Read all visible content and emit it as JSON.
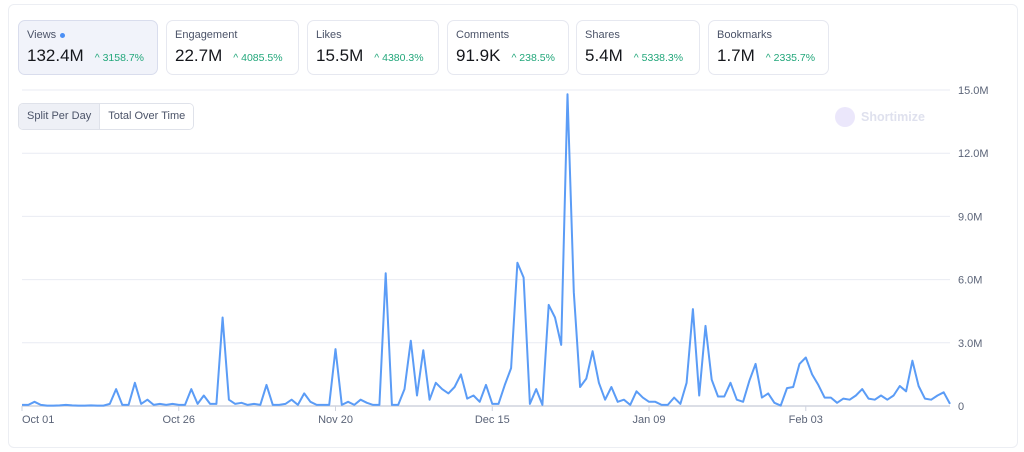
{
  "metrics": [
    {
      "label": "Views",
      "value": "132.4M",
      "change": "3158.7%",
      "active": true
    },
    {
      "label": "Engagement",
      "value": "22.7M",
      "change": "4085.5%"
    },
    {
      "label": "Likes",
      "value": "15.5M",
      "change": "4380.3%"
    },
    {
      "label": "Comments",
      "value": "91.9K",
      "change": "238.5%"
    },
    {
      "label": "Shares",
      "value": "5.4M",
      "change": "5338.3%"
    },
    {
      "label": "Bookmarks",
      "value": "1.7M",
      "change": "2335.7%"
    }
  ],
  "toggle": {
    "split": "Split Per Day",
    "total": "Total Over Time",
    "selected": "Split Per Day"
  },
  "watermark": "Shortimize",
  "colors": {
    "line": "#5b9cf6",
    "positive": "#23a77b",
    "accent_dot": "#4b8ff5"
  },
  "chart_data": {
    "type": "line",
    "series": [
      {
        "metric": "Views",
        "unit": "M",
        "values": [
          0.05,
          0.05,
          0.2,
          0.05,
          0.02,
          0.02,
          0.03,
          0.05,
          0.03,
          0.02,
          0.02,
          0.03,
          0.02,
          0.02,
          0.1,
          0.8,
          0.05,
          0.05,
          1.1,
          0.1,
          0.3,
          0.05,
          0.1,
          0.05,
          0.1,
          0.05,
          0.05,
          0.8,
          0.1,
          0.5,
          0.1,
          0.1,
          4.2,
          0.3,
          0.1,
          0.15,
          0.05,
          0.1,
          0.05,
          1.0,
          0.05,
          0.05,
          0.1,
          0.3,
          0.05,
          0.6,
          0.2,
          0.05,
          0.05,
          0.05,
          2.7,
          0.05,
          0.2,
          0.05,
          0.3,
          0.15,
          0.05,
          0.05,
          6.3,
          0.05,
          0.05,
          0.8,
          3.1,
          0.5,
          2.65,
          0.3,
          1.1,
          0.8,
          0.6,
          0.9,
          1.5,
          0.35,
          0.5,
          0.2,
          1.0,
          0.1,
          0.1,
          1.0,
          1.8,
          6.8,
          6.1,
          0.1,
          0.8,
          0.05,
          4.8,
          4.2,
          2.9,
          14.8,
          5.4,
          0.9,
          1.3,
          2.6,
          1.1,
          0.3,
          0.9,
          0.2,
          0.3,
          0.05,
          0.7,
          0.4,
          0.2,
          0.2,
          0.05,
          0.05,
          0.4,
          0.1,
          1.1,
          4.6,
          0.5,
          3.8,
          1.25,
          0.45,
          0.45,
          1.1,
          0.3,
          0.2,
          1.2,
          2.0,
          0.4,
          0.6,
          0.15,
          0.02,
          0.85,
          0.9,
          2.0,
          2.3,
          1.5,
          1.0,
          0.4,
          0.4,
          0.15,
          0.35,
          0.3,
          0.5,
          0.8,
          0.35,
          0.3,
          0.5,
          0.3,
          0.5,
          0.95,
          0.7,
          2.15,
          0.95,
          0.35,
          0.3,
          0.5,
          0.65,
          0.1
        ]
      }
    ],
    "x_ticks": [
      {
        "label": "Oct 01",
        "day": 0
      },
      {
        "label": "Oct 26",
        "day": 25
      },
      {
        "label": "Nov 20",
        "day": 50
      },
      {
        "label": "Dec 15",
        "day": 75
      },
      {
        "label": "Jan 09",
        "day": 100
      },
      {
        "label": "Feb 03",
        "day": 125
      }
    ],
    "y_ticks": [
      {
        "label": "0",
        "value": 0
      },
      {
        "label": "3.0M",
        "value": 3
      },
      {
        "label": "6.0M",
        "value": 6
      },
      {
        "label": "9.0M",
        "value": 9
      },
      {
        "label": "12.0M",
        "value": 12
      },
      {
        "label": "15.0M",
        "value": 15
      }
    ],
    "ylim": [
      0,
      15
    ],
    "y_axis_position": "right",
    "grid": true,
    "legend": "none"
  }
}
